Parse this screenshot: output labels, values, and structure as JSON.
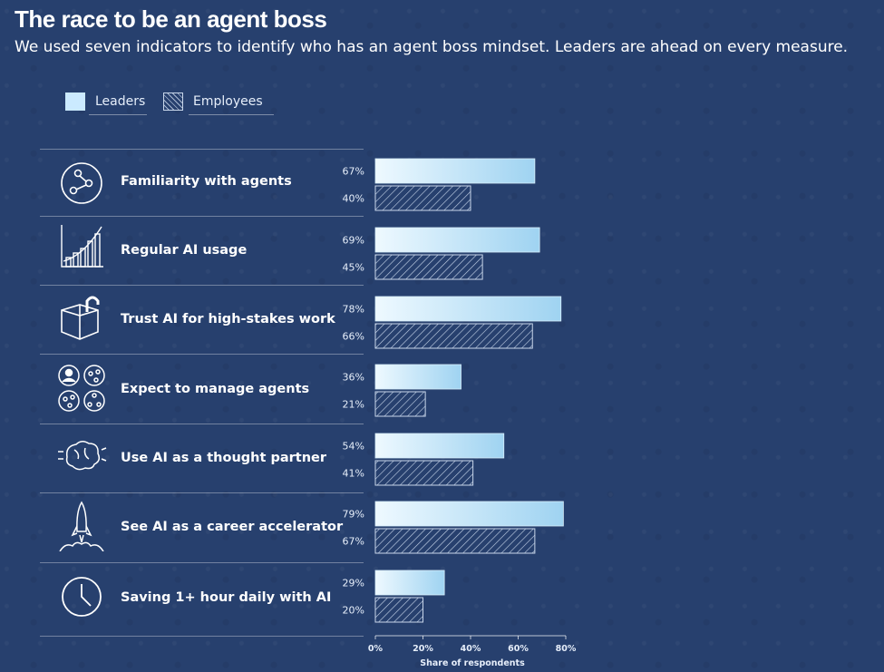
{
  "header": {
    "title": "The race to be an agent boss",
    "subtitle": "We used seven indicators to identify who has an agent boss mindset. Leaders are ahead on every measure."
  },
  "legend": {
    "leaders": "Leaders",
    "employees": "Employees"
  },
  "icons": [
    "network-circle-icon",
    "growth-chart-icon",
    "unlocked-box-icon",
    "people-agents-icon",
    "brain-icon",
    "rocket-icon",
    "clock-icon"
  ],
  "colors": {
    "background": "#27406e",
    "leaders_bar_start": "#eef9ff",
    "leaders_bar_end": "#9fd3f1",
    "employees_hatch": "#c8d6ea"
  },
  "chart_data": {
    "type": "bar",
    "orientation": "horizontal",
    "categories": [
      "Familiarity with agents",
      "Regular AI usage",
      "Trust AI for high-stakes work",
      "Expect to manage agents",
      "Use AI as a thought partner",
      "See AI as a career accelerator",
      "Saving 1+ hour daily with AI"
    ],
    "series": [
      {
        "name": "Leaders",
        "values": [
          67,
          69,
          78,
          36,
          54,
          79,
          29
        ],
        "labels": [
          "67%",
          "69%",
          "78%",
          "36%",
          "54%",
          "79%",
          "29%"
        ]
      },
      {
        "name": "Employees",
        "values": [
          40,
          45,
          66,
          21,
          41,
          67,
          20
        ],
        "labels": [
          "40%",
          "45%",
          "66%",
          "21%",
          "41%",
          "67%",
          "20%"
        ]
      }
    ],
    "xlim": [
      0,
      80
    ],
    "xticks": [
      "0%",
      "20%",
      "40%",
      "60%",
      "80%"
    ],
    "xlabel": "Share of respondents"
  }
}
